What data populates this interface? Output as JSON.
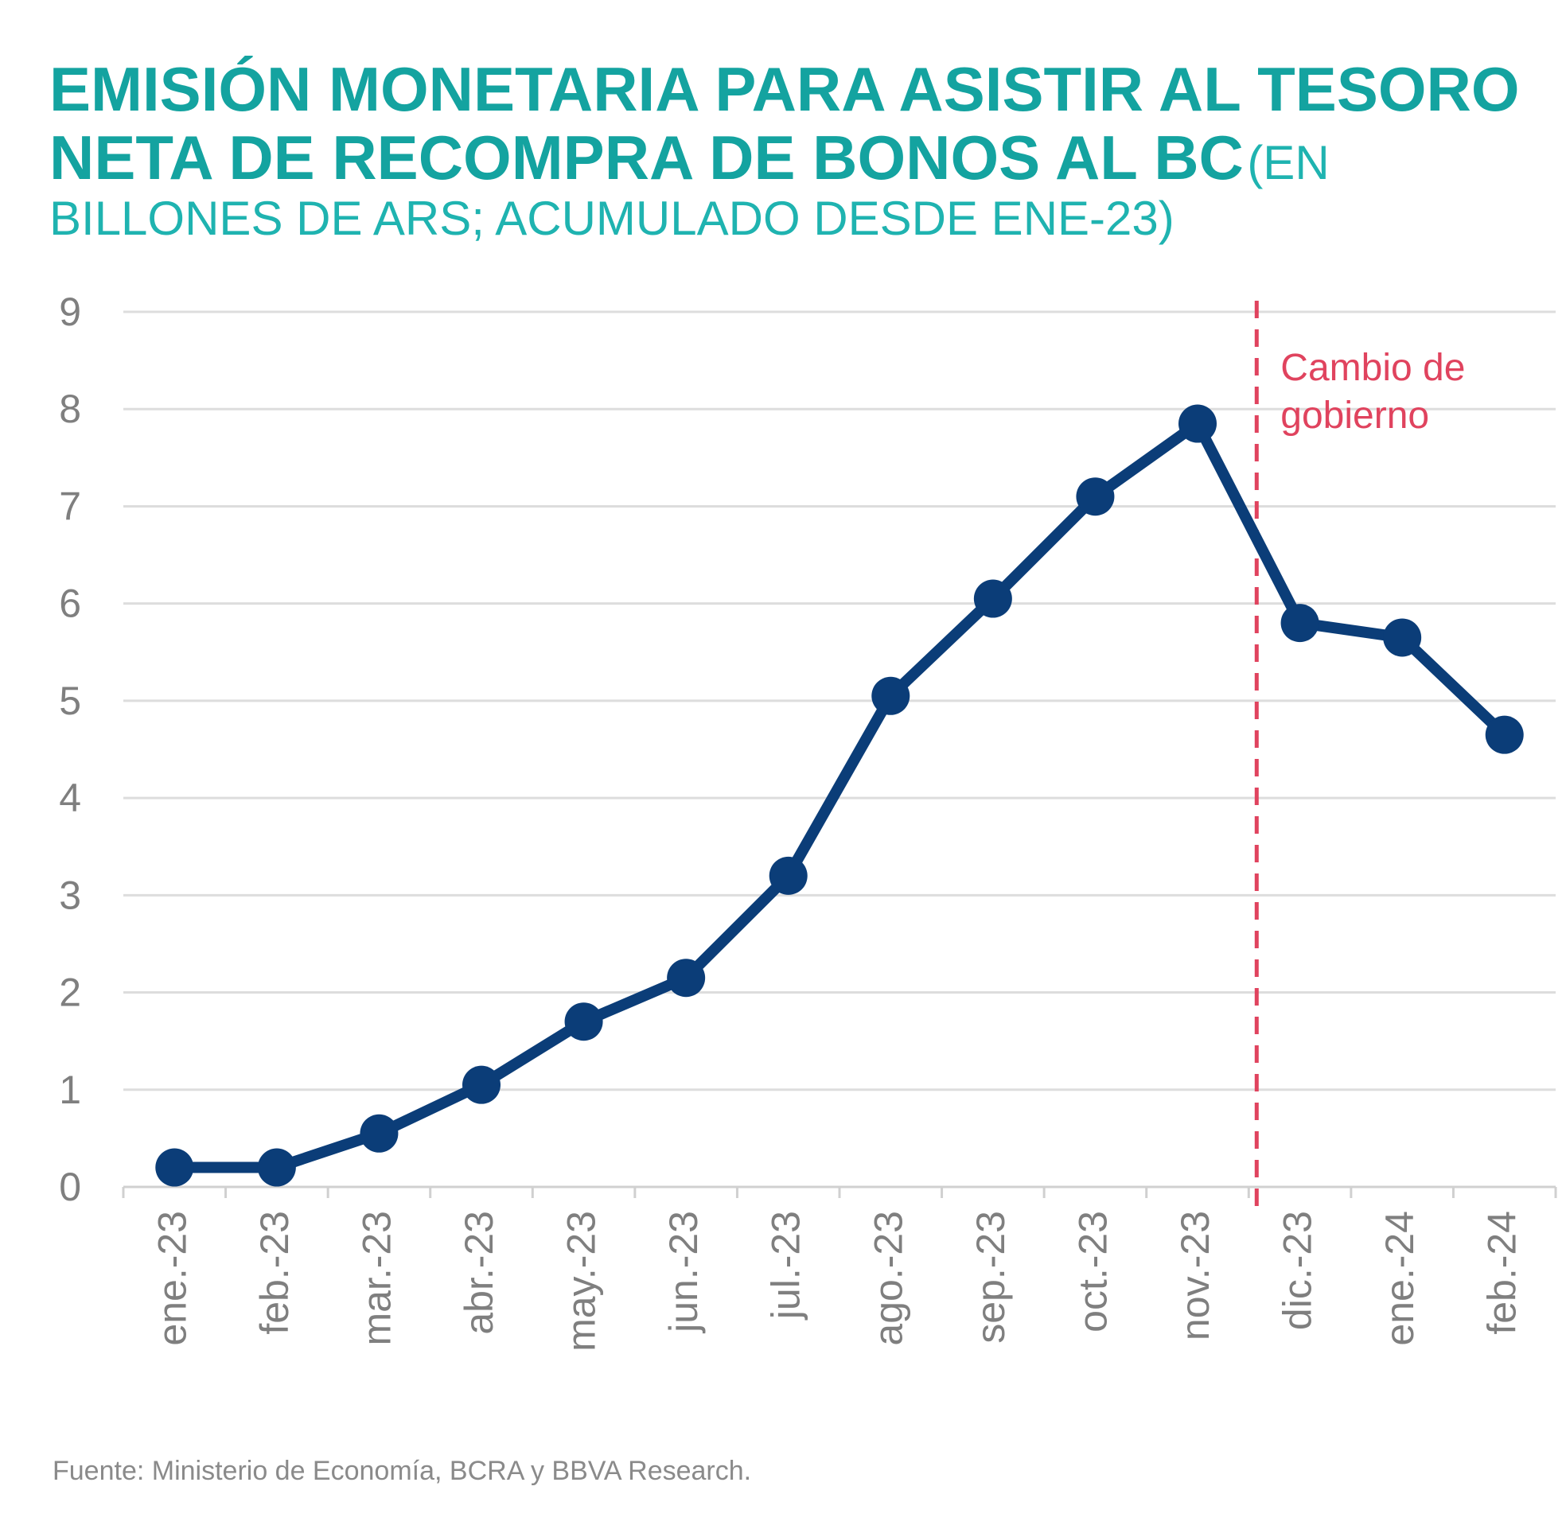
{
  "chart_data": {
    "type": "line",
    "title_line1": "EMISIÓN MONETARIA PARA ASISTIR AL TESORO",
    "title_line2": "NETA DE RECOMPRA DE BONOS AL BC",
    "subtitle": "(EN BILLONES DE ARS; ACUMULADO DESDE ENE-23)",
    "xlabel": "",
    "ylabel": "",
    "ylim": [
      0,
      9
    ],
    "yticks": [
      "0",
      "1",
      "2",
      "3",
      "4",
      "5",
      "6",
      "7",
      "8",
      "9"
    ],
    "categories": [
      "ene.-23",
      "feb.-23",
      "mar.-23",
      "abr.-23",
      "may.-23",
      "jun.-23",
      "jul.-23",
      "ago.-23",
      "sep.-23",
      "oct.-23",
      "nov.-23",
      "dic.-23",
      "ene.-24",
      "feb.-24"
    ],
    "series": [
      {
        "values": [
          0.2,
          0.2,
          0.55,
          1.05,
          1.7,
          2.15,
          3.2,
          5.05,
          6.05,
          7.1,
          7.85,
          5.8,
          5.65,
          4.65
        ]
      }
    ],
    "grid": true,
    "annotation": {
      "text_line1": "Cambio de",
      "text_line2": "gobierno",
      "after_category": "nov.-23"
    },
    "colors": {
      "line": "#0b3d78",
      "title": "#14a3a0",
      "annotation": "#e0435e",
      "grid": "#dddddd",
      "axis_text": "#7f7f7f"
    }
  },
  "source": "Fuente: Ministerio de Economía, BCRA y BBVA Research."
}
